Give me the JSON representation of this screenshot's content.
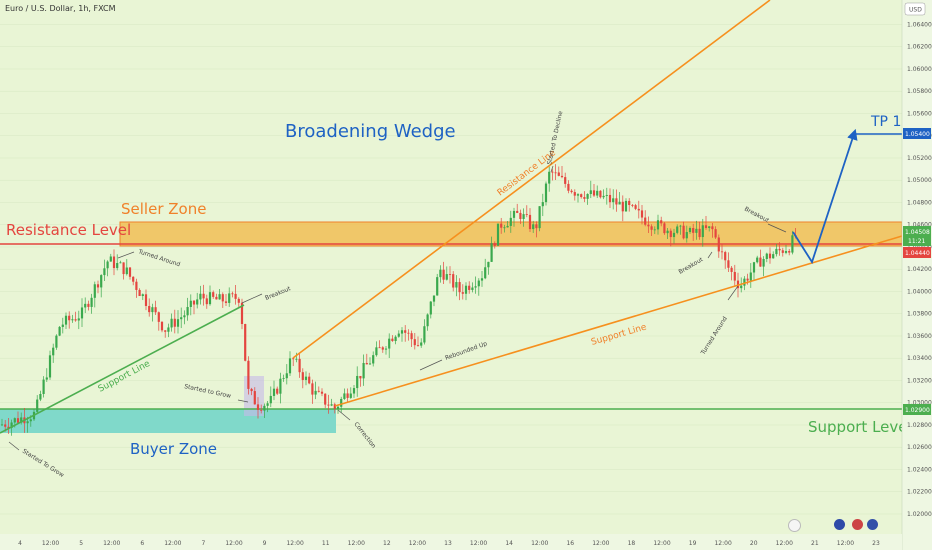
{
  "header": {
    "title": "Euro / U.S. Dollar, 1h, FXCM",
    "currency": "USD"
  },
  "colors": {
    "up": "#3aa84d",
    "down": "#e4453f",
    "resistance": "#f0812a",
    "support": "#4cae4f",
    "projection": "#1e62c4",
    "zone_fill": "#f1bb4d",
    "buyer_fill": "#74d6c9",
    "wedge": "#f6901e",
    "title_blue": "#1e62c4"
  },
  "labels": {
    "wedge_title": "Broadening Wedge",
    "seller_zone": "Seller Zone",
    "resistance_level": "Resistance Level",
    "buyer_zone": "Buyer Zone",
    "support_level": "Support Level",
    "tp1": "TP 1",
    "resistance_line": "Resistance Line",
    "support_line_green": "Support Line",
    "support_line_orange": "Support Line",
    "turned_around_1": "Turned Around",
    "turned_around_2": "Turned Around",
    "breakout_1": "Breakout",
    "breakout_2": "Breakout",
    "breakout_3": "Breakout",
    "started_to_grow_1": "Started to Grow",
    "started_to_grow_2": "Started To Grow",
    "correction": "Correction",
    "rebounded_up": "Rebounded Up",
    "started_to_decline": "Started To Decline"
  },
  "price_tags": {
    "tp": "1.05400",
    "last": "1.04508",
    "countdown": "11:21",
    "resistance": "1.04440",
    "support": "1.02900"
  },
  "chart_data": {
    "type": "candlestick",
    "title": "Euro / U.S. Dollar, 1h, FXCM",
    "ylim": [
      1.0182,
      1.0662
    ],
    "y_ticks": [
      1.02,
      1.022,
      1.024,
      1.026,
      1.028,
      1.03,
      1.032,
      1.034,
      1.036,
      1.038,
      1.04,
      1.042,
      1.044,
      1.046,
      1.048,
      1.05,
      1.052,
      1.054,
      1.056,
      1.058,
      1.06,
      1.062,
      1.064
    ],
    "x_ticks": [
      "4",
      "12:00",
      "5",
      "12:00",
      "6",
      "12:00",
      "7",
      "12:00",
      "9",
      "12:00",
      "11",
      "12:00",
      "12",
      "12:00",
      "13",
      "12:00",
      "14",
      "12:00",
      "16",
      "12:00",
      "18",
      "12:00",
      "19",
      "12:00",
      "20",
      "12:00",
      "21",
      "12:00",
      "23"
    ],
    "key_points": [
      {
        "label": "start",
        "x": "4",
        "y": 1.028
      },
      {
        "label": "high",
        "x": "5 12:00",
        "y": 1.0428
      },
      {
        "label": "breakout",
        "x": "7 12:00",
        "y": 1.0395
      },
      {
        "label": "low",
        "x": "9",
        "y": 1.0295
      },
      {
        "label": "low",
        "x": "11",
        "y": 1.0292
      },
      {
        "label": "high",
        "x": "14 12:00",
        "y": 1.0508
      },
      {
        "label": "low",
        "x": "20",
        "y": 1.0402
      },
      {
        "label": "last",
        "x": "20 12:00",
        "y": 1.04508
      }
    ],
    "levels": {
      "seller_zone": [
        1.0444,
        1.0465
      ],
      "resistance": 1.0444,
      "buyer_zone": [
        1.028,
        1.029
      ],
      "support": 1.029,
      "tp1": 1.054
    }
  }
}
